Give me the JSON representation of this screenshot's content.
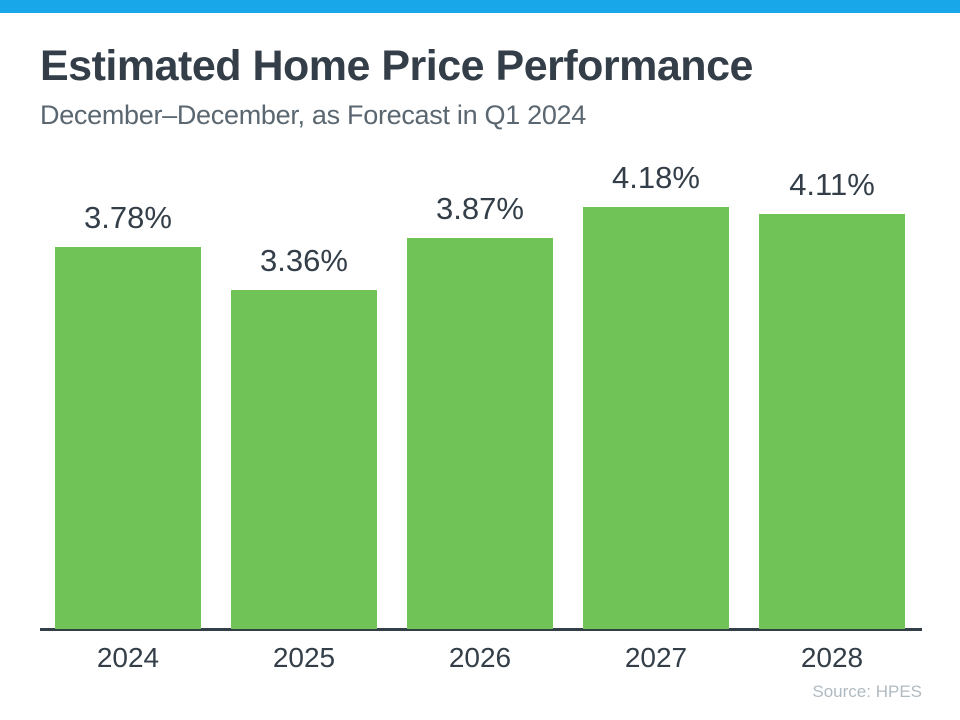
{
  "header": {
    "title": "Estimated Home Price Performance",
    "subtitle": "December–December, as Forecast in Q1 2024"
  },
  "footer": {
    "source": "Source: HPES"
  },
  "colors": {
    "accent_bar": "#18A8E9",
    "bar": "#70C356",
    "title_text": "#333E48",
    "subtitle_text": "#5B6770",
    "axis_line": "#333E48",
    "source_text": "#B0BAC1"
  },
  "chart_data": {
    "type": "bar",
    "title": "Estimated Home Price Performance",
    "subtitle": "December–December, as Forecast in Q1 2024",
    "categories": [
      "2024",
      "2025",
      "2026",
      "2027",
      "2028"
    ],
    "values": [
      3.78,
      3.36,
      3.87,
      4.18,
      4.11
    ],
    "value_labels": [
      "3.78%",
      "3.36%",
      "3.87%",
      "4.18%",
      "4.11%"
    ],
    "unit": "percent",
    "ylim": [
      0,
      4.6
    ],
    "grid": false,
    "legend": false,
    "data_labels_position": "above-bars",
    "source": "Source: HPES"
  }
}
